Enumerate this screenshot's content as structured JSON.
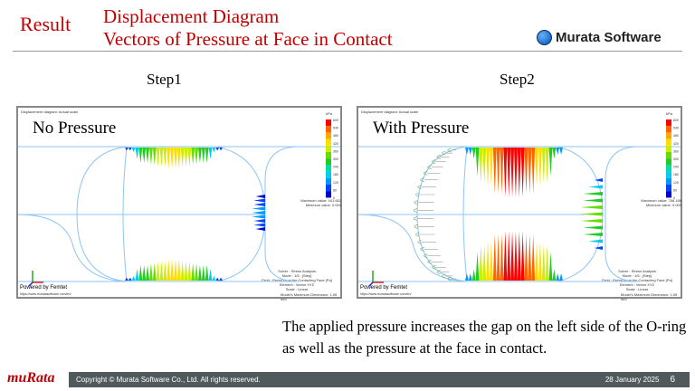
{
  "header": {
    "section": "Result",
    "title_line1": "Displacement Diagram",
    "title_line2": "Vectors of Pressure at Face in Contact",
    "logo_text": "Murata Software"
  },
  "steps": [
    {
      "label": "Step1",
      "panel_title": "No Pressure",
      "caption": "Displacement diagram: Actual scale",
      "unit": "kPa",
      "max_value": "Maximum value: 441.662",
      "min_value": "Minimum value: 0.000"
    },
    {
      "label": "Step2",
      "panel_title": "With Pressure",
      "caption": "Displacement diagram: Actual scale",
      "unit": "kPa",
      "max_value": "Maximum value: 766.188",
      "min_value": "Minimum value: 0.000"
    }
  ],
  "legend": {
    "ticks": [
      "600",
      "540",
      "480",
      "420",
      "360",
      "300",
      "240",
      "180",
      "120",
      "60",
      "0"
    ],
    "colors": [
      "#ff0000",
      "#ff6600",
      "#ffaa00",
      "#ffdd00",
      "#ccee00",
      "#66dd00",
      "#22cc22",
      "#00ddaa",
      "#00ccee",
      "#0099ff",
      "#0044ff",
      "#0000cc"
    ]
  },
  "diagram_info": {
    "powered": "Powered by Femtet",
    "url": "https://www.muratasoftware.com/en/",
    "solver": "Solver : Stress Analysis",
    "mode": "Mode : 1/5 : [Step]",
    "field": "Field : Pressure at the Contacting Face [Pa]",
    "element": "Element : Vector XYZ",
    "scale": "Scale : Linear",
    "dimension": "Model's Maximum Dimension: 1.95 mm"
  },
  "note": "The applied pressure increases the gap on the left side of the O-ring as well as the pressure at the face in contact.",
  "footer": {
    "brand": "muRata",
    "copyright": "Copyright © Murata Software Co., Ltd. All rights reserved.",
    "date": "28 January 2025",
    "page": "6"
  }
}
